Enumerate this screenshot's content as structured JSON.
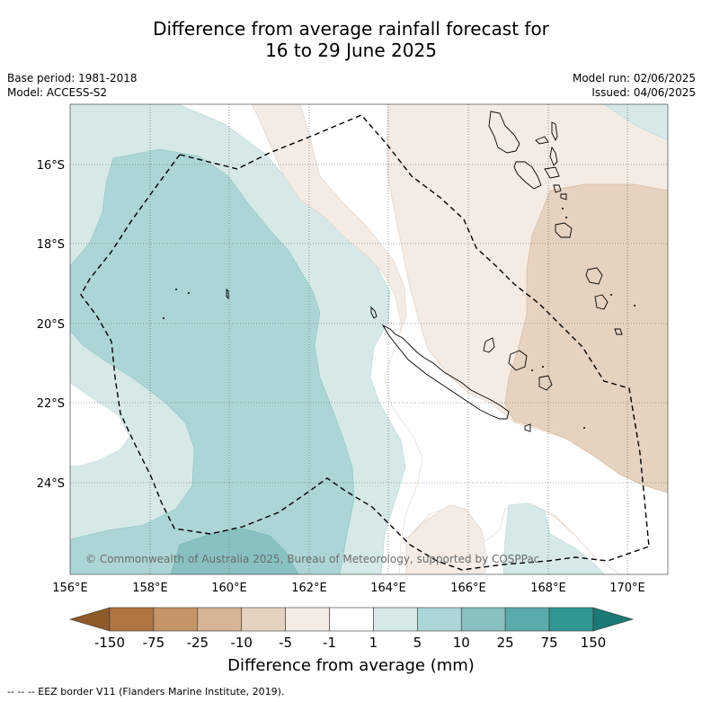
{
  "title_line1": "Difference from average rainfall forecast for",
  "title_line2": "16 to 29 June 2025",
  "base_period": "Base period: 1981-2018",
  "model": "Model: ACCESS-S2",
  "model_run": "Model run: 02/06/2025",
  "issued": "Issued: 04/06/2025",
  "copyright": "© Commonwealth of Australia 2025, Bureau of Meteorology, supported by COSPPac",
  "lat_labels": [
    "16°S",
    "18°S",
    "20°S",
    "22°S",
    "24°S"
  ],
  "lon_labels": [
    "156°E",
    "158°E",
    "160°E",
    "162°E",
    "164°E",
    "166°E",
    "168°E",
    "170°E"
  ],
  "colorbar": {
    "ticks": [
      "-150",
      "-75",
      "-25",
      "-10",
      "-5",
      "-1",
      "1",
      "5",
      "10",
      "25",
      "75",
      "150"
    ],
    "colors": [
      "#8e5a2a",
      "#b07540",
      "#c49568",
      "#d6b494",
      "#e6d2c0",
      "#f4ebe4",
      "#ffffff",
      "#d6e9e8",
      "#acd6d5",
      "#89c1c0",
      "#5aacaa",
      "#309793",
      "#1b7873"
    ],
    "label": "Difference from average (mm)"
  },
  "footnote": "--  --  -- EEZ border V11 (Flanders Marine Institute, 2019)."
}
